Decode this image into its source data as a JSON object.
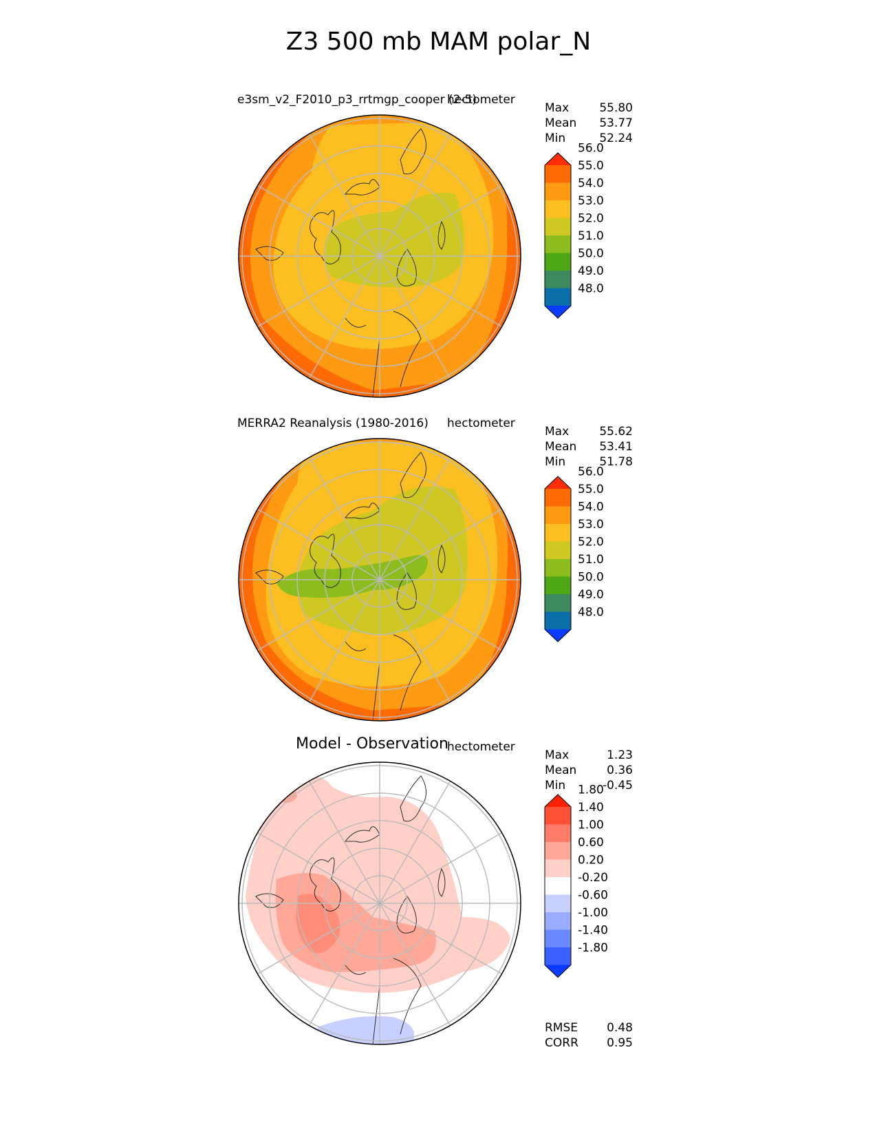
{
  "title": "Z3 500 mb MAM polar_N",
  "panels": [
    {
      "title": "e3sm_v2_F2010_p3_rrtmgp_cooper (2-5)",
      "units": "hectometer",
      "stats": [
        {
          "label": "Max",
          "value": "55.80"
        },
        {
          "label": "Mean",
          "value": "53.77"
        },
        {
          "label": "Min",
          "value": "52.24"
        }
      ],
      "colorbar": {
        "colors": [
          "#0a3cff",
          "#0a6fa8",
          "#3c8a5e",
          "#4ea814",
          "#8cbc1e",
          "#cfc722",
          "#fbbf22",
          "#fe9b12",
          "#fe6a04",
          "#ff2e08"
        ],
        "labels": [
          "48.0",
          "49.0",
          "50.0",
          "51.0",
          "52.0",
          "53.0",
          "54.0",
          "55.0",
          "56.0"
        ]
      }
    },
    {
      "title": "MERRA2 Reanalysis (1980-2016)",
      "units": "hectometer",
      "stats": [
        {
          "label": "Max",
          "value": "55.62"
        },
        {
          "label": "Mean",
          "value": "53.41"
        },
        {
          "label": "Min",
          "value": "51.78"
        }
      ],
      "colorbar": {
        "colors": [
          "#0a3cff",
          "#0a6fa8",
          "#3c8a5e",
          "#4ea814",
          "#8cbc1e",
          "#cfc722",
          "#fbbf22",
          "#fe9b12",
          "#fe6a04",
          "#ff2e08"
        ],
        "labels": [
          "48.0",
          "49.0",
          "50.0",
          "51.0",
          "52.0",
          "53.0",
          "54.0",
          "55.0",
          "56.0"
        ]
      }
    },
    {
      "title": "Model - Observation",
      "units": "hectometer",
      "stats": [
        {
          "label": "Max",
          "value": "1.23"
        },
        {
          "label": "Mean",
          "value": "0.36"
        },
        {
          "label": "Min",
          "value": "-0.45"
        }
      ],
      "metrics": [
        {
          "label": "RMSE",
          "value": "0.48"
        },
        {
          "label": "CORR",
          "value": "0.95"
        }
      ],
      "colorbar": {
        "colors": [
          "#0a3cff",
          "#3a60ff",
          "#6a88ff",
          "#9aacff",
          "#c8d0ff",
          "#ffffff",
          "#ffd0c8",
          "#ffa898",
          "#ff7d68",
          "#ff5038",
          "#ff2200"
        ],
        "labels": [
          "-1.80",
          "-1.40",
          "-1.00",
          "-0.60",
          "-0.20",
          "0.20",
          "0.60",
          "1.00",
          "1.40",
          "1.80"
        ]
      }
    }
  ],
  "chart_data": [
    {
      "type": "heatmap",
      "projection": "polar north stereographic",
      "title": "e3sm_v2_F2010_p3_rrtmgp_cooper (2-5)",
      "variable": "Z3 500 mb MAM",
      "units": "hectometer",
      "levels": [
        48.0,
        49.0,
        50.0,
        51.0,
        52.0,
        53.0,
        54.0,
        55.0,
        56.0
      ],
      "max": 55.8,
      "mean": 53.77,
      "min": 52.24
    },
    {
      "type": "heatmap",
      "projection": "polar north stereographic",
      "title": "MERRA2 Reanalysis (1980-2016)",
      "variable": "Z3 500 mb MAM",
      "units": "hectometer",
      "levels": [
        48.0,
        49.0,
        50.0,
        51.0,
        52.0,
        53.0,
        54.0,
        55.0,
        56.0
      ],
      "max": 55.62,
      "mean": 53.41,
      "min": 51.78
    },
    {
      "type": "heatmap",
      "projection": "polar north stereographic",
      "title": "Model - Observation",
      "units": "hectometer",
      "levels": [
        -1.8,
        -1.4,
        -1.0,
        -0.6,
        -0.2,
        0.2,
        0.6,
        1.0,
        1.4,
        1.8
      ],
      "max": 1.23,
      "mean": 0.36,
      "min": -0.45,
      "rmse": 0.48,
      "corr": 0.95
    }
  ]
}
